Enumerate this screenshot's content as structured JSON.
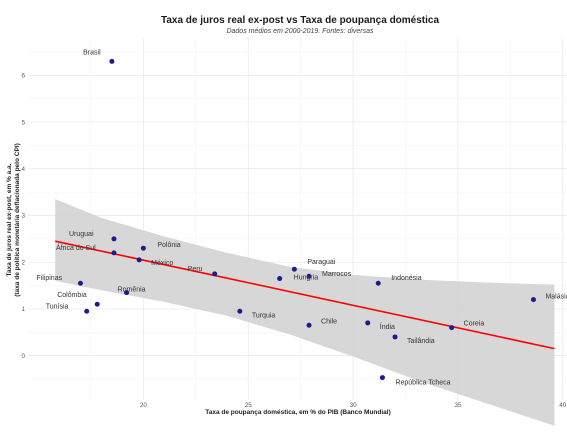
{
  "chart_data": {
    "type": "scatter",
    "title": "Taxa de juros real ex-post vs Taxa de poupança doméstica",
    "subtitle": "Dados médios em 2000-2019. Fontes: diversas",
    "xlabel": "Taxa de poupança doméstica, em % do PIB (Banco Mundial)",
    "ylabel_line1": "Taxa de juros real ex-post, em % a.a.",
    "ylabel_line2": "(taxa de política monetária deflacionada pelo CPI)",
    "xlim": [
      14.5,
      40.2
    ],
    "ylim": [
      -0.95,
      6.8
    ],
    "xticks": [
      20,
      25,
      30,
      35,
      40
    ],
    "yticks": [
      0,
      1,
      2,
      3,
      4,
      5,
      6
    ],
    "grid": true,
    "point_color": "#1c1c8c",
    "trend": {
      "color": "#ff0000",
      "x": [
        15.8,
        39.6
      ],
      "y": [
        2.45,
        0.15
      ]
    },
    "band": {
      "color": "#d3d3d3",
      "upper": [
        [
          15.8,
          3.35
        ],
        [
          18,
          2.95
        ],
        [
          21,
          2.55
        ],
        [
          24,
          2.2
        ],
        [
          27,
          1.9
        ],
        [
          30,
          1.73
        ],
        [
          33,
          1.63
        ],
        [
          36,
          1.57
        ],
        [
          39.6,
          1.52
        ]
      ],
      "lower": [
        [
          15.8,
          1.6
        ],
        [
          18,
          1.4
        ],
        [
          21,
          1.15
        ],
        [
          24,
          0.85
        ],
        [
          27,
          0.45
        ],
        [
          30,
          -0.02
        ],
        [
          33,
          -0.52
        ],
        [
          36,
          -0.97
        ],
        [
          39.6,
          -1.5
        ]
      ]
    },
    "points": [
      {
        "name": "Brasil",
        "x": 18.5,
        "y": 6.3
      },
      {
        "name": "Uruguai",
        "x": 18.6,
        "y": 2.5
      },
      {
        "name": "África do Sul",
        "x": 18.6,
        "y": 2.2
      },
      {
        "name": "Polônia",
        "x": 20.0,
        "y": 2.3
      },
      {
        "name": "México",
        "x": 19.8,
        "y": 2.05
      },
      {
        "name": "Peru",
        "x": 23.4,
        "y": 1.75
      },
      {
        "name": "Filipinas",
        "x": 17.0,
        "y": 1.55
      },
      {
        "name": "Romênia",
        "x": 19.2,
        "y": 1.35
      },
      {
        "name": "Colômbia",
        "x": 17.8,
        "y": 1.1
      },
      {
        "name": "Tunísia",
        "x": 17.3,
        "y": 0.95
      },
      {
        "name": "Turquia",
        "x": 24.6,
        "y": 0.95
      },
      {
        "name": "Paraguai",
        "x": 27.2,
        "y": 1.85
      },
      {
        "name": "Hungria",
        "x": 26.5,
        "y": 1.65
      },
      {
        "name": "Marrocos",
        "x": 27.9,
        "y": 1.7
      },
      {
        "name": "Indonésia",
        "x": 31.2,
        "y": 1.55
      },
      {
        "name": "Chile",
        "x": 27.9,
        "y": 0.65
      },
      {
        "name": "Índia",
        "x": 30.7,
        "y": 0.7
      },
      {
        "name": "Tailândia",
        "x": 32.0,
        "y": 0.4
      },
      {
        "name": "Coreia",
        "x": 34.7,
        "y": 0.6
      },
      {
        "name": "Malásia",
        "x": 38.6,
        "y": 1.2
      },
      {
        "name": "República Tcheca",
        "x": 31.4,
        "y": -0.47
      }
    ]
  }
}
